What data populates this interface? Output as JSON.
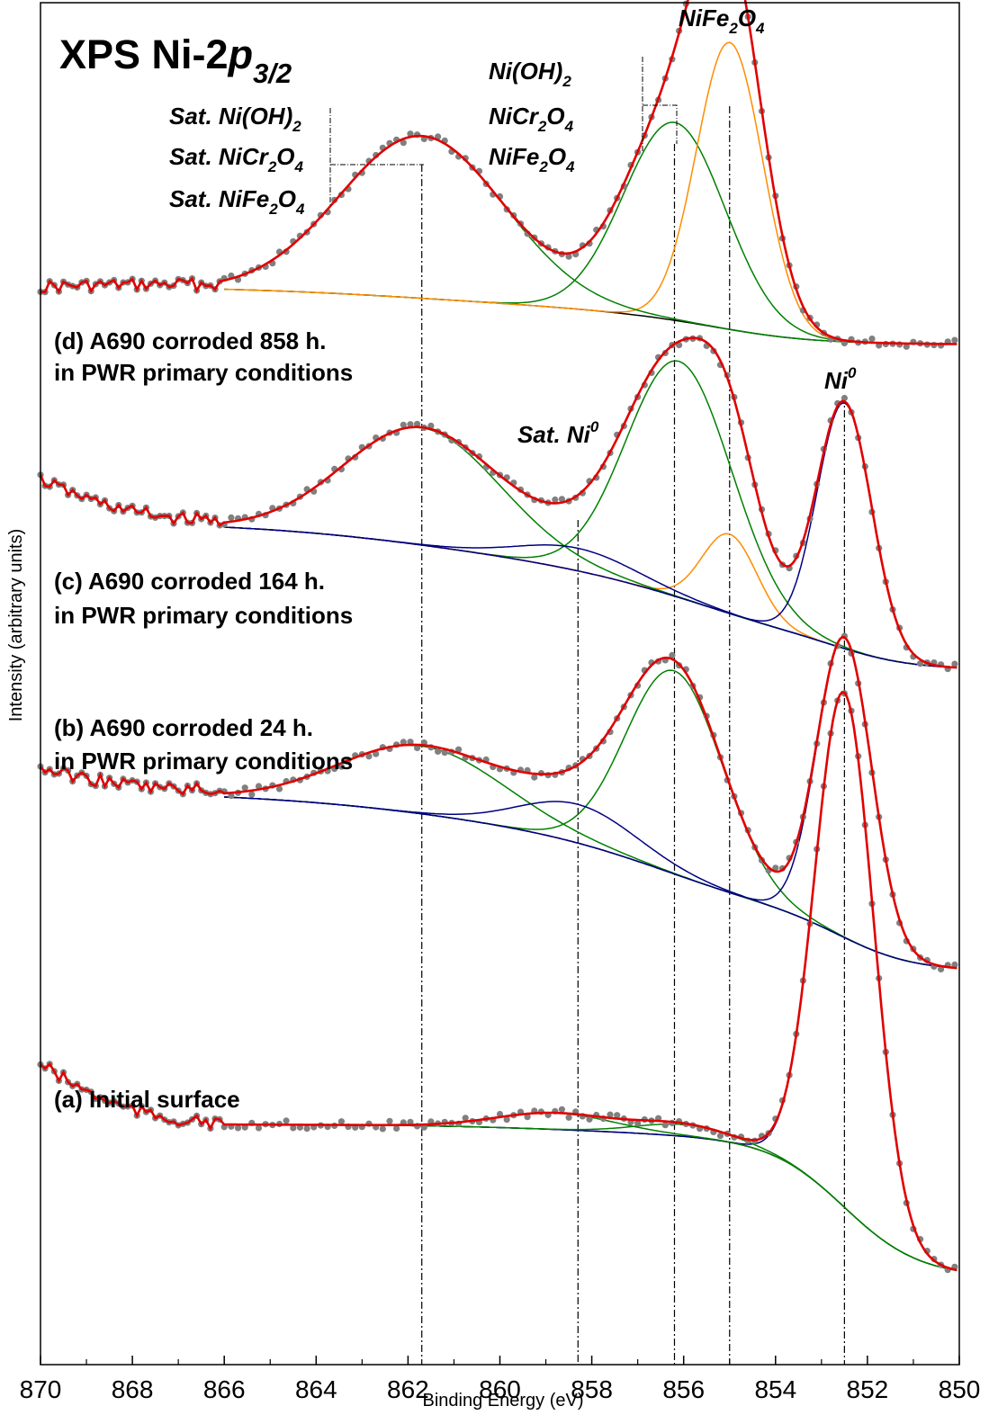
{
  "chart_data": {
    "type": "line",
    "title": "XPS Ni-2p3/2",
    "title_parts": {
      "main": "XPS Ni-2",
      "italic": "p",
      "sub": "3/2"
    },
    "xlabel": "Binding Energy (eV)",
    "ylabel": "Intensity (arbitrary units)",
    "xlim": [
      870,
      850
    ],
    "x_reversed": true,
    "x_ticks": [
      870,
      868,
      866,
      864,
      862,
      860,
      858,
      856,
      854,
      852,
      850
    ],
    "y_ticks_labeled": false,
    "reference_lines_eV": [
      861.7,
      858.3,
      856.2,
      855.0,
      852.5
    ],
    "colors": {
      "data_points": "#808080",
      "envelope": "#e00000",
      "background": "#000000",
      "ni_oxide": "#008000",
      "nife2o4": "#ff8c00",
      "ni_metal": "#000080"
    },
    "annotations": {
      "nife2o4_top": {
        "base": "NiFe",
        "sub1": "2",
        "mid": "O",
        "sub2": "4"
      },
      "nioh2": {
        "base": "Ni(OH)",
        "sub": "2"
      },
      "nicr2o4": {
        "base": "NiCr",
        "sub1": "2",
        "mid": "O",
        "sub2": "4"
      },
      "nife2o4": {
        "base": "NiFe",
        "sub1": "2",
        "mid": "O",
        "sub2": "4"
      },
      "sat_nioh2": {
        "base": "Sat. Ni(OH)",
        "sub": "2"
      },
      "sat_nicr2o4": {
        "base": "Sat. NiCr",
        "sub1": "2",
        "mid": "O",
        "sub2": "4"
      },
      "sat_nife2o4": {
        "base": "Sat. NiFe",
        "sub1": "2",
        "mid": "O",
        "sub2": "4"
      },
      "ni0": {
        "base": "Ni",
        "sup": "0"
      },
      "sat_ni0": {
        "base": "Sat. Ni",
        "sup": "0"
      }
    },
    "spectra": [
      {
        "id": "d",
        "label_line1": "(d) A690 corroded 858 h.",
        "label_line2": "in PWR primary conditions",
        "baseline_level": 0.0,
        "components": [
          {
            "name": "Ni(OH)2 / NiCr2O4",
            "color": "#008000",
            "center": 856.2,
            "height": 1.0,
            "fwhm": 2.6
          },
          {
            "name": "NiFe2O4",
            "color": "#ff8c00",
            "center": 855.0,
            "height": 1.45,
            "fwhm": 1.7
          },
          {
            "name": "Satellite",
            "color": "#008000",
            "center": 861.7,
            "height": 0.82,
            "fwhm": 4.2
          }
        ]
      },
      {
        "id": "c",
        "label_line1": "(c) A690 corroded 164 h.",
        "label_line2": "in PWR primary conditions",
        "baseline_level": 0.0,
        "components": [
          {
            "name": "Ni(OH)2 / NiCr2O4",
            "color": "#008000",
            "center": 856.1,
            "height": 1.25,
            "fwhm": 2.7
          },
          {
            "name": "NiFe2O4",
            "color": "#ff8c00",
            "center": 855.0,
            "height": 0.42,
            "fwhm": 1.4
          },
          {
            "name": "Satellite",
            "color": "#008000",
            "center": 861.7,
            "height": 0.62,
            "fwhm": 4.0
          },
          {
            "name": "Ni0",
            "color": "#000080",
            "center": 852.5,
            "height": 1.3,
            "fwhm": 1.4
          },
          {
            "name": "Sat. Ni0",
            "color": "#000080",
            "center": 858.3,
            "height": 0.12,
            "fwhm": 3.0
          }
        ]
      },
      {
        "id": "b",
        "label_line1": "(b) A690 corroded 24 h.",
        "label_line2": "in PWR primary conditions",
        "baseline_level": 0.0,
        "components": [
          {
            "name": "Ni(OH)2 / NiCr2O4",
            "color": "#008000",
            "center": 856.2,
            "height": 1.05,
            "fwhm": 2.5
          },
          {
            "name": "Satellite",
            "color": "#008000",
            "center": 861.7,
            "height": 0.35,
            "fwhm": 4.2
          },
          {
            "name": "Ni0",
            "color": "#000080",
            "center": 852.5,
            "height": 1.55,
            "fwhm": 1.4
          },
          {
            "name": "Sat. Ni0",
            "color": "#000080",
            "center": 858.3,
            "height": 0.2,
            "fwhm": 3.0
          }
        ]
      },
      {
        "id": "a",
        "label_line1": "(a) Initial surface",
        "label_line2": "",
        "baseline_level": 0.0,
        "components": [
          {
            "name": "Ni0",
            "color": "#000080",
            "center": 852.5,
            "height": 2.2,
            "fwhm": 1.5
          },
          {
            "name": "Oxide",
            "color": "#008000",
            "center": 856.0,
            "height": 0.05,
            "fwhm": 2.4
          },
          {
            "name": "Satellite",
            "color": "#008000",
            "center": 858.8,
            "height": 0.07,
            "fwhm": 3.0
          }
        ]
      }
    ]
  }
}
